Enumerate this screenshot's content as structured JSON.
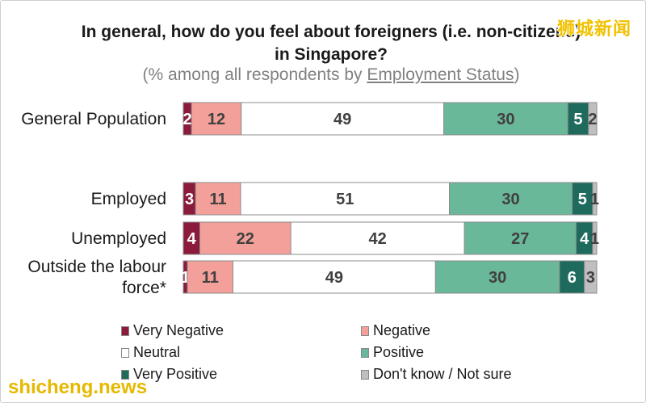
{
  "watermark_top": "狮城新闻",
  "watermark_bottom": "shicheng.news",
  "chart_data": {
    "type": "bar",
    "orientation": "horizontal",
    "stacked": true,
    "title": "In general, how do you feel about foreigners (i.e. non-citizens) in Singapore?",
    "subtitle_prefix": "(% among all respondents by ",
    "subtitle_underlined": "Employment Status",
    "subtitle_suffix": ")",
    "categories": [
      "General Population",
      "Employed",
      "Unemployed",
      "Outside the labour force*"
    ],
    "category_lines": [
      [
        "General Population"
      ],
      [
        "Employed"
      ],
      [
        "Unemployed"
      ],
      [
        "Outside the labour",
        "force*"
      ]
    ],
    "series": [
      {
        "name": "Very Negative",
        "color": "#8b1a3c",
        "values": [
          2,
          3,
          4,
          1
        ],
        "labels": [
          "2",
          "3",
          "4",
          "1"
        ]
      },
      {
        "name": "Negative",
        "color": "#f4a09a",
        "values": [
          12,
          11,
          22,
          11
        ],
        "labels": [
          "12",
          "11",
          "22",
          "11"
        ]
      },
      {
        "name": "Neutral",
        "color": "#ffffff",
        "values": [
          49,
          51,
          42,
          49
        ],
        "labels": [
          "49",
          "51",
          "42",
          "49"
        ]
      },
      {
        "name": "Positive",
        "color": "#6ab89a",
        "values": [
          30,
          30,
          27,
          30
        ],
        "labels": [
          "30",
          "30",
          "27",
          "30"
        ]
      },
      {
        "name": "Very Positive",
        "color": "#1e6b5e",
        "values": [
          5,
          5,
          4,
          6
        ],
        "labels": [
          "5",
          "5",
          "4",
          "6"
        ]
      },
      {
        "name": "Don't know / Not sure",
        "color": "#bfbfbf",
        "values": [
          2,
          1,
          1,
          3
        ],
        "labels": [
          "2",
          "1",
          "1",
          "3"
        ]
      }
    ],
    "xlim": [
      0,
      100
    ],
    "grid": false,
    "legend_position": "bottom"
  }
}
